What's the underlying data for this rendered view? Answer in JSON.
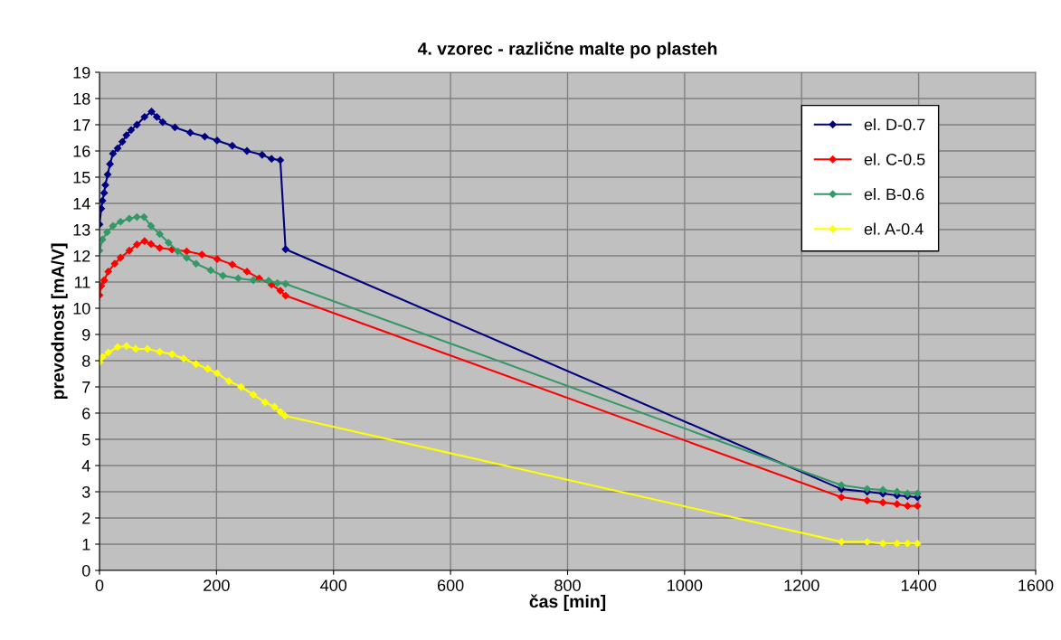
{
  "chart_data": {
    "type": "line",
    "title": "4. vzorec - različne malte po plasteh",
    "xlabel": "čas [min]",
    "ylabel": "prevodnost [mA/V]",
    "xlim": [
      0,
      1600
    ],
    "xticks": [
      0,
      200,
      400,
      600,
      800,
      1000,
      1200,
      1400,
      1600
    ],
    "ylim": [
      0,
      19
    ],
    "yticks": [
      0,
      1,
      2,
      3,
      4,
      5,
      6,
      7,
      8,
      9,
      10,
      11,
      12,
      13,
      14,
      15,
      16,
      17,
      18,
      19
    ],
    "grid": true,
    "legend": "top right",
    "marker": "diamond",
    "line_style": "solid",
    "series": [
      {
        "name": "el. D-0.7",
        "color": "#000080",
        "x": [
          0,
          3,
          5,
          8,
          10,
          14,
          18,
          23,
          31,
          39,
          46,
          54,
          64,
          77,
          89,
          98,
          108,
          129,
          155,
          180,
          201,
          227,
          252,
          278,
          294,
          309,
          318,
          1268,
          1312,
          1339,
          1363,
          1381,
          1398
        ],
        "values": [
          13.2,
          13.8,
          14.1,
          14.4,
          14.7,
          15.1,
          15.5,
          15.9,
          16.1,
          16.35,
          16.6,
          16.8,
          17.0,
          17.3,
          17.5,
          17.3,
          17.1,
          16.9,
          16.7,
          16.55,
          16.4,
          16.2,
          16.0,
          15.85,
          15.7,
          15.65,
          12.25,
          3.1,
          3.0,
          2.93,
          2.86,
          2.83,
          2.79
        ]
      },
      {
        "name": "el. C-0.5",
        "color": "#ff0000",
        "x": [
          0,
          3,
          8,
          15,
          26,
          36,
          51,
          64,
          77,
          88,
          103,
          124,
          149,
          175,
          201,
          227,
          252,
          273,
          294,
          309,
          318,
          1268,
          1312,
          1339,
          1363,
          1381,
          1398
        ],
        "values": [
          10.5,
          10.85,
          11.07,
          11.4,
          11.7,
          11.93,
          12.2,
          12.43,
          12.56,
          12.45,
          12.3,
          12.24,
          12.17,
          12.05,
          11.88,
          11.67,
          11.4,
          11.14,
          10.9,
          10.67,
          10.48,
          2.79,
          2.66,
          2.59,
          2.53,
          2.46,
          2.46
        ]
      },
      {
        "name": "el. B-0.6",
        "color": "#339966",
        "x": [
          0,
          5,
          13,
          23,
          36,
          51,
          64,
          76,
          88,
          103,
          118,
          134,
          149,
          165,
          190,
          211,
          237,
          263,
          289,
          304,
          318,
          1268,
          1312,
          1339,
          1363,
          1381,
          1398
        ],
        "values": [
          12.2,
          12.62,
          12.9,
          13.14,
          13.3,
          13.42,
          13.48,
          13.48,
          13.14,
          12.83,
          12.5,
          12.17,
          11.93,
          11.7,
          11.45,
          11.24,
          11.14,
          11.07,
          11.05,
          10.96,
          10.93,
          3.25,
          3.11,
          3.07,
          3.0,
          2.93,
          2.93
        ]
      },
      {
        "name": "el. A-0.4",
        "color": "#ffff00",
        "x": [
          0,
          5,
          15,
          31,
          46,
          62,
          82,
          103,
          124,
          144,
          165,
          185,
          201,
          221,
          242,
          263,
          283,
          299,
          309,
          317,
          1268,
          1312,
          1339,
          1363,
          1381,
          1398
        ],
        "values": [
          7.94,
          8.14,
          8.31,
          8.52,
          8.56,
          8.45,
          8.45,
          8.34,
          8.25,
          8.08,
          7.87,
          7.69,
          7.52,
          7.22,
          7.0,
          6.7,
          6.41,
          6.24,
          6.05,
          5.9,
          1.09,
          1.09,
          1.03,
          1.03,
          1.03,
          1.03
        ]
      }
    ]
  }
}
